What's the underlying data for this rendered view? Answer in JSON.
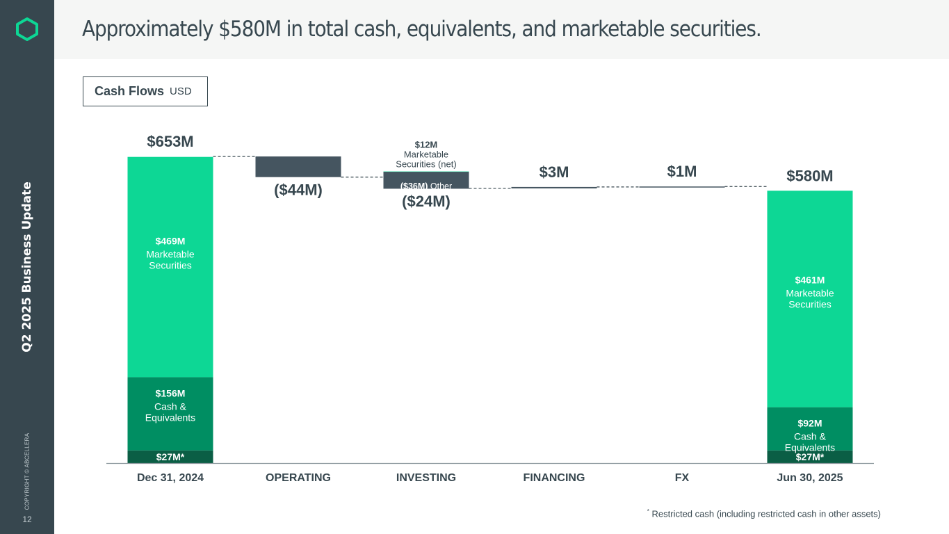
{
  "sidebar": {
    "title": "Q2 2025 Business Update",
    "copyright": "COPYRIGHT © ABCELLERA",
    "page_number": "12"
  },
  "header": {
    "title": "Approximately $580M in total cash, equivalents, and marketable securities."
  },
  "cash_flows_box": {
    "label": "Cash Flows",
    "unit": "USD"
  },
  "footnote": {
    "marker": "*",
    "text": "Restricted cash (including restricted cash in other assets)"
  },
  "colors": {
    "sidebar": "#37474f",
    "marketable": "#0dd795",
    "cash": "#008e62",
    "restricted": "#0b5e45",
    "negative": "#455560",
    "text": "#37474f"
  },
  "chart_data": {
    "type": "waterfall",
    "units": "USD millions",
    "ylim": [
      0,
      653
    ],
    "categories": [
      "Dec 31, 2024",
      "OPERATING",
      "INVESTING",
      "FINANCING",
      "FX",
      "Jun 30, 2025"
    ],
    "start": {
      "category": "Dec 31, 2024",
      "total": 653,
      "total_label": "$653M",
      "segments": [
        {
          "name": "Restricted cash",
          "value": 27,
          "label": "$27M*",
          "desc": ""
        },
        {
          "name": "Cash & Equivalents",
          "value": 156,
          "label": "$156M",
          "desc": "Cash &\nEquivalents"
        },
        {
          "name": "Marketable Securities",
          "value": 469,
          "label": "$469M",
          "desc": "Marketable\nSecurities"
        }
      ]
    },
    "flows": [
      {
        "category": "OPERATING",
        "value": -44,
        "label": "($44M)"
      },
      {
        "category": "INVESTING",
        "value": -24,
        "label": "($24M)",
        "components": [
          {
            "name": "Marketable Securities (net)",
            "value": 12,
            "label": "$12M",
            "desc": "Marketable\nSecurities (net)"
          },
          {
            "name": "Other",
            "value": -36,
            "label": "($36M)",
            "desc": "Other"
          }
        ]
      },
      {
        "category": "FINANCING",
        "value": 3,
        "label": "$3M"
      },
      {
        "category": "FX",
        "value": 1,
        "label": "$1M"
      }
    ],
    "end": {
      "category": "Jun 30, 2025",
      "total": 580,
      "total_label": "$580M",
      "segments": [
        {
          "name": "Restricted cash",
          "value": 27,
          "label": "$27M*",
          "desc": ""
        },
        {
          "name": "Cash & Equivalents",
          "value": 92,
          "label": "$92M",
          "desc": "Cash &\nEquivalents"
        },
        {
          "name": "Marketable Securities",
          "value": 461,
          "label": "$461M",
          "desc": "Marketable\nSecurities"
        }
      ]
    }
  }
}
